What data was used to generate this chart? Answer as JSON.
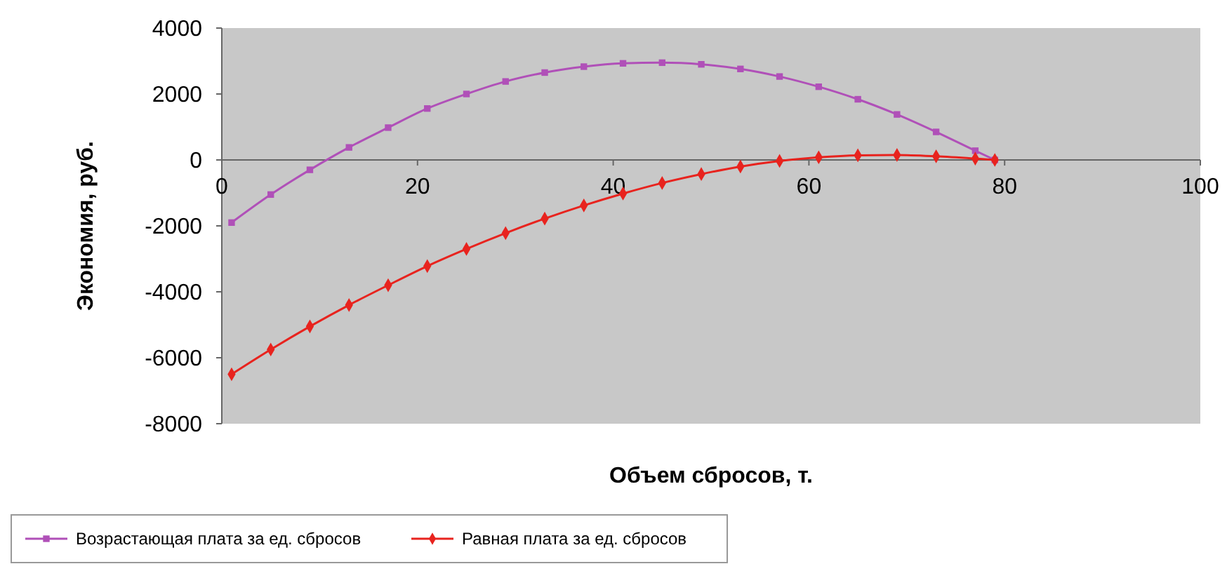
{
  "chart_data": {
    "type": "line",
    "xlabel": "Объем сбросов, т.",
    "ylabel": "Экономия, руб.",
    "xlim": [
      0,
      100
    ],
    "xticks": [
      0,
      20,
      40,
      60,
      80,
      100
    ],
    "ylim": [
      -8000,
      4000
    ],
    "yticks": [
      -8000,
      -6000,
      -4000,
      -2000,
      0,
      2000,
      4000
    ],
    "grid": false,
    "legend": "bottom",
    "x": [
      1,
      5,
      9,
      13,
      17,
      21,
      25,
      29,
      33,
      37,
      41,
      45,
      49,
      53,
      57,
      61,
      65,
      69,
      73,
      77,
      79
    ],
    "series": [
      {
        "name": "Возрастающая плата за ед. сбросов",
        "color": "#b050b8",
        "marker": "square",
        "values": [
          -1900,
          -1050,
          -300,
          380,
          980,
          1560,
          2000,
          2380,
          2650,
          2830,
          2930,
          2950,
          2900,
          2760,
          2530,
          2220,
          1840,
          1380,
          850,
          280,
          0
        ]
      },
      {
        "name": "Равная плата за ед. сбросов",
        "color": "#e8231e",
        "marker": "diamond",
        "values": [
          -6500,
          -5750,
          -5050,
          -4400,
          -3800,
          -3220,
          -2700,
          -2220,
          -1780,
          -1380,
          -1020,
          -700,
          -430,
          -200,
          -30,
          80,
          140,
          150,
          110,
          40,
          0
        ]
      }
    ]
  }
}
